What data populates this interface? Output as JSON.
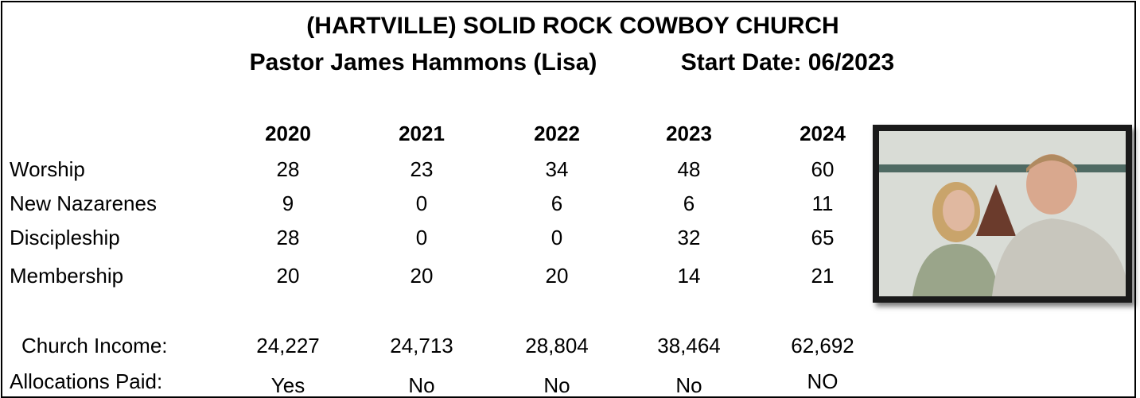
{
  "header": {
    "title": "(HARTVILLE) SOLID ROCK COWBOY CHURCH",
    "pastor": "Pastor James Hammons (Lisa)",
    "start_date": "Start Date: 06/2023"
  },
  "table": {
    "columns": [
      "2020",
      "2021",
      "2022",
      "2023",
      "2024"
    ],
    "rows": [
      {
        "label": "Worship",
        "values": [
          "28",
          "23",
          "34",
          "48",
          "60"
        ]
      },
      {
        "label": "New Nazarenes",
        "values": [
          "9",
          "0",
          "6",
          "6",
          "11"
        ]
      },
      {
        "label": "Discipleship",
        "values": [
          "28",
          "0",
          "0",
          "32",
          "65"
        ]
      },
      {
        "label": "Membership",
        "values": [
          "20",
          "20",
          "20",
          "14",
          "21"
        ]
      },
      {
        "label": "Church Income:",
        "values": [
          "24,227",
          "24,713",
          "28,804",
          "38,464",
          "62,692"
        ]
      },
      {
        "label": "Allocations Paid:",
        "values": [
          "Yes",
          "No",
          "No",
          "No",
          "NO"
        ]
      }
    ]
  }
}
